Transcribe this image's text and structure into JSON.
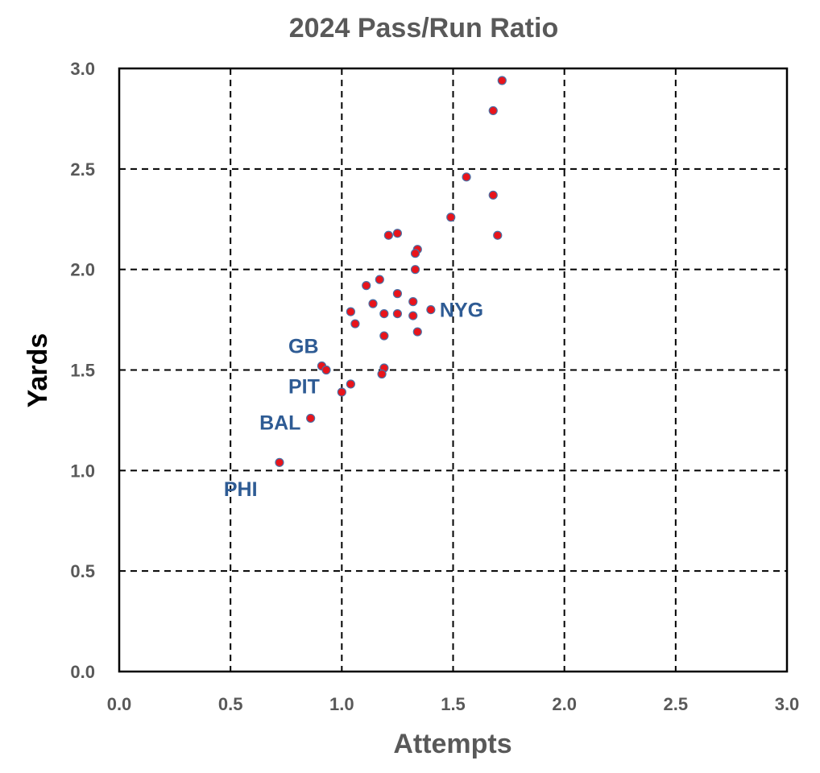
{
  "chart_data": {
    "type": "scatter",
    "title": "2024 Pass/Run Ratio",
    "xlabel": "Attempts",
    "ylabel": "Yards",
    "xlim": [
      0,
      3
    ],
    "ylim": [
      0,
      3
    ],
    "xticks": [
      "0.0",
      "0.5",
      "1.0",
      "1.5",
      "2.0",
      "2.5",
      "3.0"
    ],
    "yticks": [
      "0.0",
      "0.5",
      "1.0",
      "1.5",
      "2.0",
      "2.5",
      "3.0"
    ],
    "grid": true,
    "marker_color": "#e8141b",
    "marker_edge_color": "#4a6fa5",
    "annotation_color": "#2e5b94",
    "points": [
      {
        "x": 1.72,
        "y": 2.94
      },
      {
        "x": 1.68,
        "y": 2.79
      },
      {
        "x": 1.56,
        "y": 2.46
      },
      {
        "x": 1.68,
        "y": 2.37
      },
      {
        "x": 1.49,
        "y": 2.26
      },
      {
        "x": 1.7,
        "y": 2.17
      },
      {
        "x": 1.21,
        "y": 2.17
      },
      {
        "x": 1.25,
        "y": 2.18
      },
      {
        "x": 1.34,
        "y": 2.1
      },
      {
        "x": 1.33,
        "y": 2.08
      },
      {
        "x": 1.33,
        "y": 2.0
      },
      {
        "x": 1.11,
        "y": 1.92
      },
      {
        "x": 1.17,
        "y": 1.95
      },
      {
        "x": 1.25,
        "y": 1.88
      },
      {
        "x": 1.14,
        "y": 1.83
      },
      {
        "x": 1.32,
        "y": 1.84
      },
      {
        "x": 1.04,
        "y": 1.79
      },
      {
        "x": 1.19,
        "y": 1.78
      },
      {
        "x": 1.25,
        "y": 1.78
      },
      {
        "x": 1.32,
        "y": 1.77
      },
      {
        "x": 1.4,
        "y": 1.8
      },
      {
        "x": 1.06,
        "y": 1.73
      },
      {
        "x": 1.34,
        "y": 1.69
      },
      {
        "x": 1.19,
        "y": 1.67
      },
      {
        "x": 0.91,
        "y": 1.52
      },
      {
        "x": 0.93,
        "y": 1.5
      },
      {
        "x": 1.19,
        "y": 1.51
      },
      {
        "x": 1.18,
        "y": 1.48
      },
      {
        "x": 1.04,
        "y": 1.43
      },
      {
        "x": 1.0,
        "y": 1.39
      },
      {
        "x": 0.86,
        "y": 1.26
      },
      {
        "x": 0.72,
        "y": 1.04
      }
    ],
    "annotations": [
      {
        "text": "NYG",
        "x": 1.44,
        "y": 1.8
      },
      {
        "text": "GB",
        "x": 0.76,
        "y": 1.62
      },
      {
        "text": "PIT",
        "x": 0.76,
        "y": 1.42
      },
      {
        "text": "BAL",
        "x": 0.63,
        "y": 1.24
      },
      {
        "text": "PHI",
        "x": 0.47,
        "y": 0.91
      }
    ]
  }
}
